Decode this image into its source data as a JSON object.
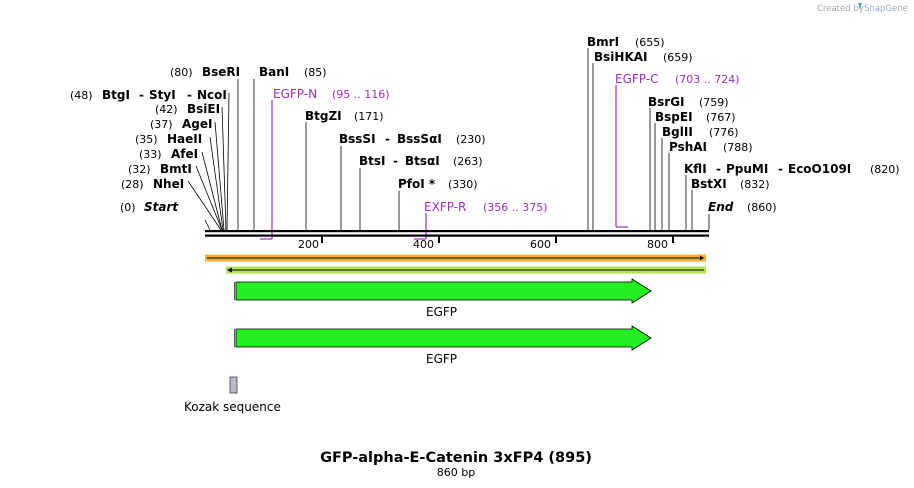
{
  "credit": {
    "prefix": "Created by",
    "brand": "SnapGene"
  },
  "sequence": {
    "name": "GFP-alpha-E-Catenin 3xFP4 (895)",
    "length_label": "860 bp",
    "length": 860
  },
  "ends": {
    "start": {
      "label": "Start",
      "pos": "(0)"
    },
    "end": {
      "label": "End",
      "pos": "(860)"
    }
  },
  "enzymes": {
    "nhei": {
      "name": "NheI",
      "pos": "(28)"
    },
    "bmti": {
      "name": "BmtI",
      "pos": "(32)"
    },
    "afei": {
      "name": "AfeI",
      "pos": "(33)"
    },
    "haeii": {
      "name": "HaeII",
      "pos": "(35)"
    },
    "agei": {
      "name": "AgeI",
      "pos": "(37)"
    },
    "bsiei": {
      "name": "BsiEI",
      "pos": "(42)"
    },
    "btgi": {
      "name": "BtgI",
      "pos": "(48)"
    },
    "styi": {
      "name": "StyI"
    },
    "ncoi": {
      "name": "NcoI"
    },
    "bseri": {
      "name": "BseRI",
      "pos": "(80)"
    },
    "bani": {
      "name": "BanI",
      "pos": "(85)"
    },
    "btgzi": {
      "name": "BtgZI",
      "pos": "(171)"
    },
    "bsssi": {
      "name": "BssSI",
      "pos": "(230)"
    },
    "bsssai": {
      "name": "BssSαI"
    },
    "btsi": {
      "name": "BtsI",
      "pos": "(263)"
    },
    "btsai": {
      "name": "BtsαI"
    },
    "pfoi": {
      "name": "PfoI *",
      "pos": "(330)"
    },
    "bmri": {
      "name": "BmrI",
      "pos": "(655)"
    },
    "bsihkai": {
      "name": "BsiHKAI",
      "pos": "(659)"
    },
    "bsrgi": {
      "name": "BsrGI",
      "pos": "(759)"
    },
    "bspei": {
      "name": "BspEI",
      "pos": "(767)"
    },
    "bglii": {
      "name": "BglII",
      "pos": "(776)"
    },
    "pshai": {
      "name": "PshAI",
      "pos": "(788)"
    },
    "kfli": {
      "name": "KflI",
      "pos": "(820)"
    },
    "ppumi": {
      "name": "PpuMI"
    },
    "eco": {
      "name": "EcoO109I"
    },
    "bstxi": {
      "name": "BstXI",
      "pos": "(832)"
    },
    "sep": "-"
  },
  "primers": {
    "egfpn": {
      "name": "EGFP-N",
      "range": "(95 .. 116)"
    },
    "egfpc": {
      "name": "EGFP-C",
      "range": "(703 .. 724)"
    },
    "exfpr": {
      "name": "EXFP-R",
      "range": "(356 .. 375)"
    }
  },
  "ruler": {
    "ticks": [
      "200",
      "400",
      "600",
      "800"
    ]
  },
  "features": {
    "egfp_1": "EGFP",
    "egfp_2": "EGFP",
    "kozak": "Kozak sequence"
  },
  "colors": {
    "primer": "#9a2fc4",
    "feature_fill": "#22ee22",
    "orange_bar": "#f5a623",
    "green_bar": "#b3e24d"
  }
}
